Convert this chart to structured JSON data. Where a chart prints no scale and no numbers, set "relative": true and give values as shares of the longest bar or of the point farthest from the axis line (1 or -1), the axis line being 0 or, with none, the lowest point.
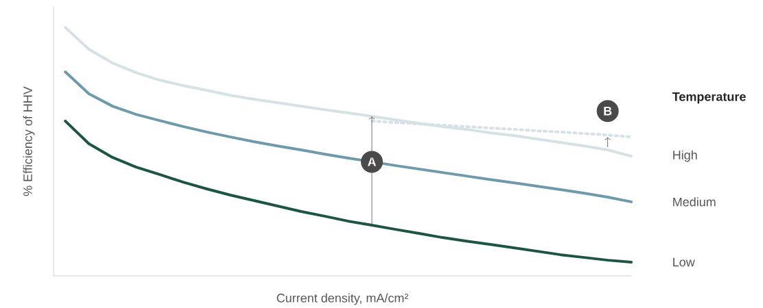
{
  "chart_data": {
    "type": "line",
    "relative": true,
    "xlabel": "Current density, mA/cm²",
    "ylabel": "% Efficiency of HHV",
    "legend_title": "Temperature",
    "categories": [
      null,
      null,
      null,
      null,
      null,
      null,
      null,
      null,
      null,
      null,
      null,
      null,
      null,
      null,
      null,
      null,
      null,
      null,
      null,
      null,
      null,
      null,
      null,
      null,
      null
    ],
    "series": [
      {
        "name": "High",
        "color": "#d5e1e4",
        "line_style": "solid",
        "values": [
          1.0,
          0.912,
          0.857,
          0.818,
          0.788,
          0.766,
          0.747,
          0.727,
          0.711,
          0.697,
          0.683,
          0.669,
          0.656,
          0.642,
          0.628,
          0.614,
          0.601,
          0.59,
          0.576,
          0.565,
          0.551,
          0.537,
          0.523,
          0.507,
          0.482
        ]
      },
      {
        "name": "Medium",
        "color": "#6f9aab",
        "line_style": "solid",
        "values": [
          0.821,
          0.733,
          0.683,
          0.65,
          0.625,
          0.601,
          0.579,
          0.559,
          0.54,
          0.523,
          0.507,
          0.49,
          0.474,
          null,
          0.444,
          0.43,
          0.416,
          0.402,
          0.388,
          0.375,
          0.361,
          0.347,
          0.333,
          0.317,
          0.298
        ]
      },
      {
        "name": "Low",
        "color": "#1e5446",
        "line_style": "solid",
        "values": [
          0.623,
          0.532,
          0.477,
          0.438,
          0.408,
          0.377,
          0.35,
          0.325,
          0.303,
          0.281,
          0.259,
          0.24,
          0.22,
          0.204,
          0.187,
          0.171,
          0.154,
          0.14,
          0.127,
          0.113,
          0.099,
          0.085,
          0.074,
          0.063,
          0.055
        ]
      },
      {
        "color": "#d5e1e4",
        "line_style": "dotted",
        "values": [
          null,
          null,
          null,
          null,
          null,
          null,
          null,
          null,
          null,
          null,
          null,
          null,
          null,
          0.623,
          0.617,
          0.612,
          0.606,
          0.601,
          0.595,
          0.59,
          0.584,
          0.579,
          0.573,
          0.567,
          0.559
        ]
      }
    ],
    "annotations": [
      "A",
      "B"
    ],
    "legend": false,
    "marker": "none"
  }
}
